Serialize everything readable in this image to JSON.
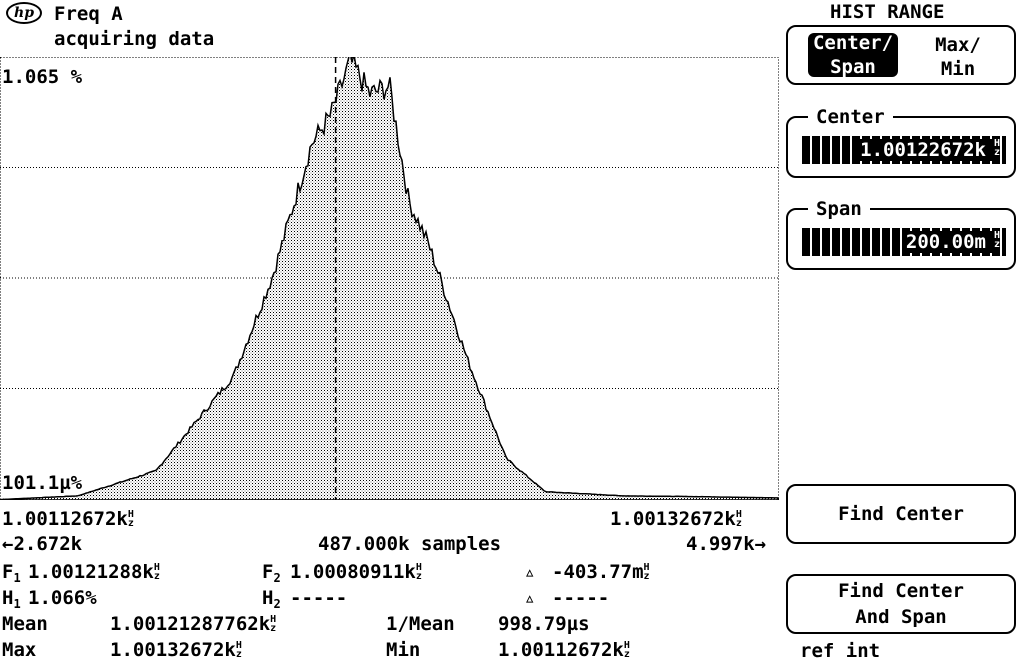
{
  "header": {
    "logo": "hp",
    "measurement": "Freq A",
    "status": "acquiring data"
  },
  "plot": {
    "y_top_label": "1.065 %",
    "y_bottom_label": "101.1µ%",
    "x_left_label": "1.00112672kHz",
    "x_right_label": "1.00132672kHz",
    "left_count": "←2.672k",
    "samples": "487.000k samples",
    "right_count": "4.997k→"
  },
  "chart_data": {
    "type": "area",
    "title": "",
    "x_range": [
      1.00112672,
      1.00132672
    ],
    "x_unit": "kHz",
    "y_range_percent": [
      0,
      1.065
    ],
    "gridlines_y": 4,
    "marker_x": 1.00121288,
    "x": [
      1.0011267,
      1.0011467,
      1.0011667,
      1.0011867,
      1.0011967,
      1.0012067,
      1.0012117,
      1.0012167,
      1.0012217,
      1.0012267,
      1.0012317,
      1.0012367,
      1.0012467,
      1.0012567,
      1.0012667,
      1.0012867,
      1.0013067,
      1.0013267
    ],
    "values": [
      0.001,
      0.01,
      0.07,
      0.3,
      0.54,
      0.86,
      0.93,
      1.06,
      0.98,
      1.0,
      0.72,
      0.62,
      0.34,
      0.1,
      0.02,
      0.01,
      0.008,
      0.005
    ]
  },
  "readouts": {
    "f1": "1.00121288kHz",
    "f2": "1.00080911kHz",
    "delta_f": "-403.77mHz",
    "h1": "1.066%",
    "h2": "-----",
    "delta_h": "-----",
    "mean_label": "Mean",
    "mean": "1.00121287762kHz",
    "inv_mean_label": "1/Mean",
    "inv_mean": "998.79µs",
    "max_label": "Max",
    "max": "1.00132672kHz",
    "min_label": "Min",
    "min": "1.00112672kHz"
  },
  "menu": {
    "title": "HIST RANGE",
    "toggle_left": "Center/ Span",
    "toggle_right": "Max/ Min",
    "center_label": "Center",
    "center_value": "1.00122672kHz",
    "span_label": "Span",
    "span_value": "200.00mHz",
    "find_center": "Find Center",
    "find_center_span": "Find Center And Span",
    "ref": "ref int"
  }
}
